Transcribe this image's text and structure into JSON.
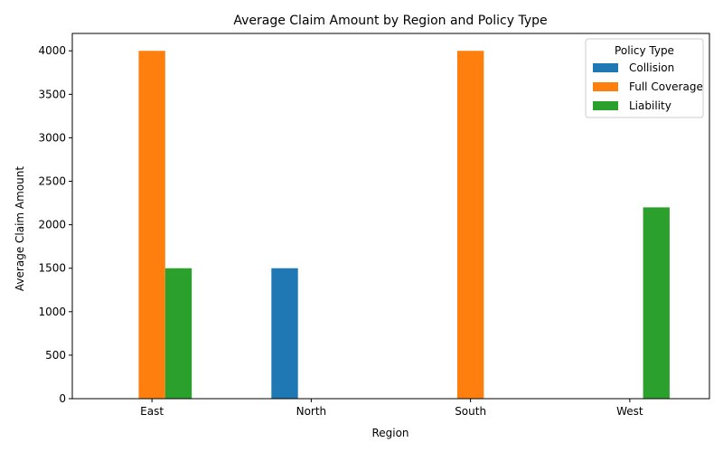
{
  "chart_data": {
    "type": "bar",
    "title": "Average Claim Amount by Region and Policy Type",
    "xlabel": "Region",
    "ylabel": "Average Claim Amount",
    "categories": [
      "East",
      "North",
      "South",
      "West"
    ],
    "ylim": [
      0,
      4200
    ],
    "yticks": [
      0,
      500,
      1000,
      1500,
      2000,
      2500,
      3000,
      3500,
      4000
    ],
    "legend_title": "Policy Type",
    "legend_position": "top-right",
    "grid": false,
    "series": [
      {
        "name": "Collision",
        "color": "#1f77b4",
        "values": [
          null,
          1500,
          null,
          null
        ]
      },
      {
        "name": "Full Coverage",
        "color": "#ff7f0e",
        "values": [
          4000,
          null,
          4000,
          null
        ]
      },
      {
        "name": "Liability",
        "color": "#2ca02c",
        "values": [
          1500,
          null,
          null,
          2200
        ]
      }
    ]
  }
}
